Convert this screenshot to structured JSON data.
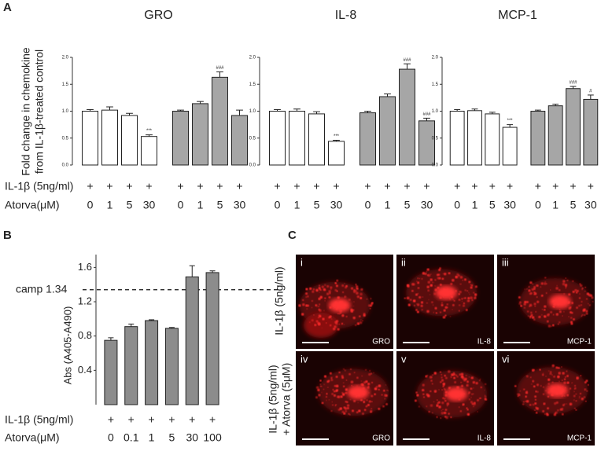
{
  "figure": {
    "panel_a": {
      "label": "A",
      "ylabel": [
        "Fold change in chemokine",
        "from IL-1β-treated control"
      ],
      "row_labels": [
        "IL-1β (5ng/ml)",
        "Atorva(μM)"
      ]
    },
    "panel_b": {
      "label": "B",
      "row_labels": [
        "IL-1β (5ng/ml)",
        "Atorva(μM)"
      ]
    },
    "panel_c": {
      "label": "C",
      "row_labels": [
        [
          "IL-1β (5ng/ml)"
        ],
        [
          "IL-1β (5ng/ml)",
          "+ Atorva (5μM)"
        ]
      ],
      "images": [
        {
          "numeral": "i",
          "marker": "GRO"
        },
        {
          "numeral": "ii",
          "marker": "IL-8"
        },
        {
          "numeral": "iii",
          "marker": "MCP-1"
        },
        {
          "numeral": "iv",
          "marker": "GRO"
        },
        {
          "numeral": "v",
          "marker": "IL-8"
        },
        {
          "numeral": "vi",
          "marker": "MCP-1"
        }
      ]
    }
  },
  "chart_data": [
    {
      "type": "bar",
      "title": "GRO",
      "treatment": [
        "+",
        "+",
        "+",
        "+",
        "+",
        "+",
        "+",
        "+"
      ],
      "categories": [
        "0",
        "1",
        "5",
        "30",
        "0",
        "1",
        "5",
        "30"
      ],
      "values": [
        1.0,
        1.02,
        0.92,
        0.53,
        1.0,
        1.14,
        1.63,
        0.92
      ],
      "errors": [
        0.03,
        0.06,
        0.04,
        0.03,
        0.02,
        0.04,
        0.1,
        0.1
      ],
      "bar_colors": [
        "#ffffff",
        "#ffffff",
        "#ffffff",
        "#ffffff",
        "#a6a6a6",
        "#a6a6a6",
        "#a6a6a6",
        "#a6a6a6"
      ],
      "annotations": [
        null,
        null,
        null,
        "***",
        null,
        null,
        "###",
        null
      ],
      "ylim": [
        0,
        2.0
      ],
      "yticks": [
        {
          "value": 0,
          "label": "0.0"
        },
        {
          "value": 0.5,
          "label": "0.5"
        },
        {
          "value": 1,
          "label": "1.0"
        },
        {
          "value": 1.5,
          "label": "1.5"
        },
        {
          "value": 2,
          "label": "2.0"
        }
      ]
    },
    {
      "type": "bar",
      "title": "IL-8",
      "treatment": [
        "+",
        "+",
        "+",
        "+",
        "+",
        "+",
        "+",
        "+"
      ],
      "categories": [
        "0",
        "1",
        "5",
        "30",
        "0",
        "1",
        "5",
        "30"
      ],
      "values": [
        1.0,
        1.0,
        0.95,
        0.44,
        0.97,
        1.27,
        1.78,
        0.82
      ],
      "errors": [
        0.03,
        0.04,
        0.04,
        0.02,
        0.03,
        0.05,
        0.1,
        0.05
      ],
      "bar_colors": [
        "#ffffff",
        "#ffffff",
        "#ffffff",
        "#ffffff",
        "#a6a6a6",
        "#a6a6a6",
        "#a6a6a6",
        "#a6a6a6"
      ],
      "annotations": [
        null,
        null,
        null,
        "***",
        null,
        null,
        "###",
        "###"
      ],
      "ylim": [
        0,
        2.0
      ],
      "yticks": [
        {
          "value": 0,
          "label": "0.0"
        },
        {
          "value": 0.5,
          "label": "0.5"
        },
        {
          "value": 1,
          "label": "1.0"
        },
        {
          "value": 1.5,
          "label": "1.5"
        },
        {
          "value": 2,
          "label": "2.0"
        }
      ]
    },
    {
      "type": "bar",
      "title": "MCP-1",
      "treatment": [
        "+",
        "+",
        "+",
        "+",
        "+",
        "+",
        "+",
        "+"
      ],
      "categories": [
        "0",
        "1",
        "5",
        "30",
        "0",
        "1",
        "5",
        "30"
      ],
      "values": [
        1.0,
        1.01,
        0.95,
        0.7,
        1.0,
        1.1,
        1.42,
        1.22
      ],
      "errors": [
        0.03,
        0.03,
        0.03,
        0.05,
        0.02,
        0.03,
        0.04,
        0.08
      ],
      "bar_colors": [
        "#ffffff",
        "#ffffff",
        "#ffffff",
        "#ffffff",
        "#a6a6a6",
        "#a6a6a6",
        "#a6a6a6",
        "#a6a6a6"
      ],
      "annotations": [
        null,
        null,
        null,
        "***",
        null,
        null,
        "###",
        "#"
      ],
      "ylim": [
        0,
        2.0
      ],
      "yticks": [
        {
          "value": 0,
          "label": "0.0"
        },
        {
          "value": 0.5,
          "label": "0.5"
        },
        {
          "value": 1,
          "label": "1.0"
        },
        {
          "value": 1.5,
          "label": "1.5"
        },
        {
          "value": 2,
          "label": "2.0"
        }
      ]
    },
    {
      "type": "bar",
      "ylabel": "Abs (A405-A490)",
      "treatment": [
        "+",
        "+",
        "+",
        "+",
        "+",
        "+"
      ],
      "categories": [
        "0",
        "0.1",
        "1",
        "5",
        "30",
        "100"
      ],
      "values": [
        0.75,
        0.91,
        0.98,
        0.89,
        1.49,
        1.54
      ],
      "errors": [
        0.03,
        0.03,
        0.01,
        0.01,
        0.13,
        0.02
      ],
      "color": "#8c8c8c",
      "ylim": [
        0,
        1.75
      ],
      "yticks": [
        0.4,
        0.8,
        1.2,
        1.6
      ],
      "reference_line": {
        "value": 1.34,
        "label": "camp 1.34"
      }
    }
  ]
}
